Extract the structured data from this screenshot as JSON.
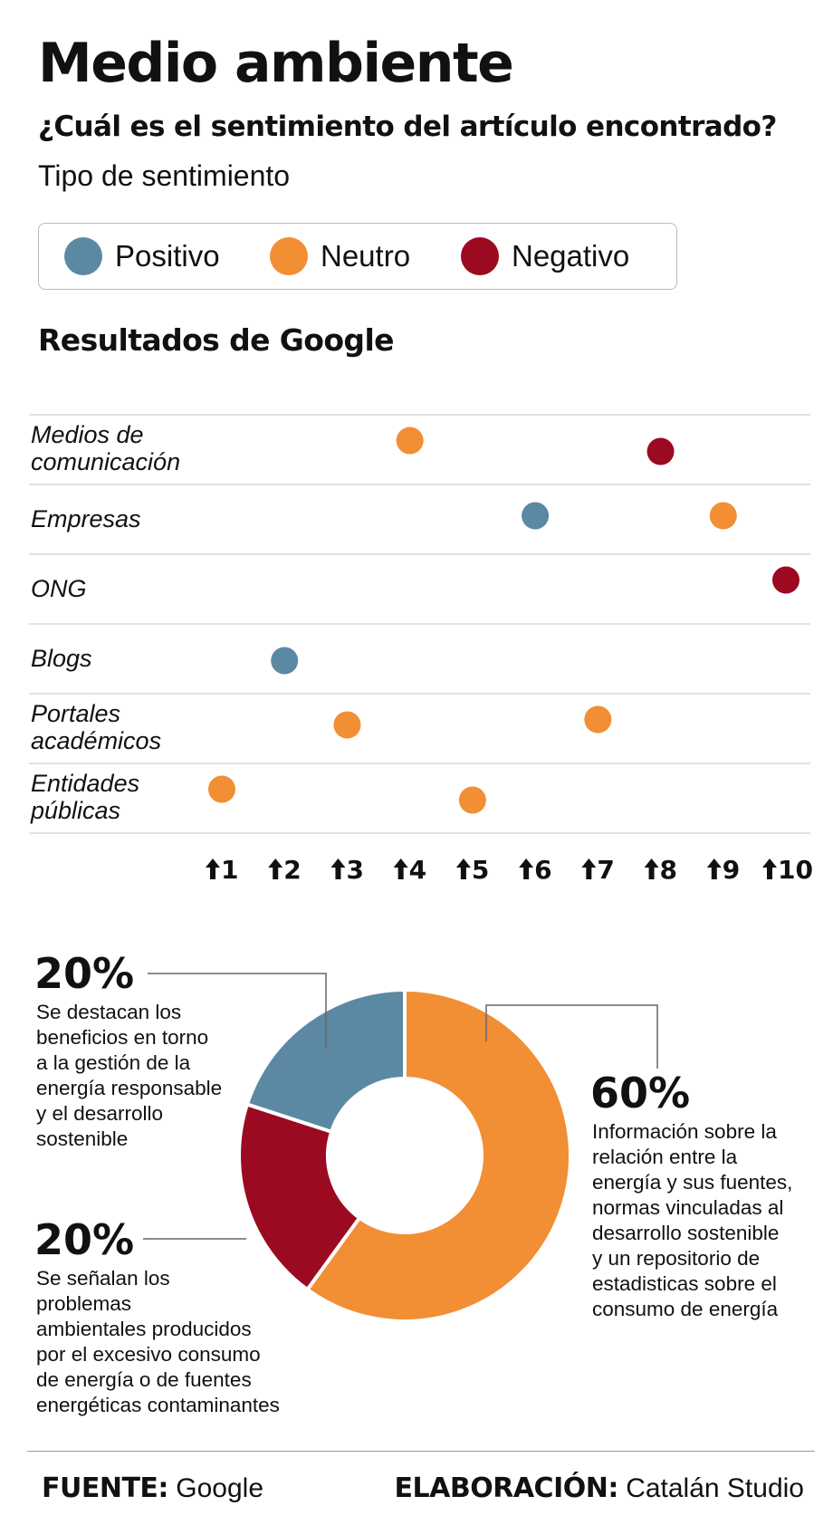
{
  "header": {
    "title": "Medio ambiente",
    "subtitle": "¿Cuál es el sentimiento del artículo encontrado?",
    "legend_title": "Tipo de sentimiento"
  },
  "colors": {
    "positivo": "#5b89a3",
    "neutro": "#f28e34",
    "negativo": "#9b0a21",
    "grid": "#d9d9d9",
    "text": "#111111"
  },
  "legend": [
    {
      "label": "Positivo",
      "color": "#5b89a3"
    },
    {
      "label": "Neutro",
      "color": "#f28e34"
    },
    {
      "label": "Negativo",
      "color": "#9b0a21"
    }
  ],
  "section_title": "Resultados de Google",
  "chart_data": [
    {
      "type": "scatter",
      "title": "Resultados de Google",
      "x_ticks": [
        "1",
        "2",
        "3",
        "4",
        "5",
        "6",
        "7",
        "8",
        "9",
        "10"
      ],
      "x_range": [
        1,
        10
      ],
      "categories": [
        "Medios de comunicación",
        "Empresas",
        "ONG",
        "Blogs",
        "Portales académicos",
        "Entidades públicas"
      ],
      "points": [
        {
          "category": 0,
          "rank": 4,
          "sentiment": "neutro"
        },
        {
          "category": 0,
          "rank": 8,
          "sentiment": "negativo"
        },
        {
          "category": 1,
          "rank": 6,
          "sentiment": "positivo"
        },
        {
          "category": 1,
          "rank": 9,
          "sentiment": "neutro"
        },
        {
          "category": 2,
          "rank": 10,
          "sentiment": "negativo"
        },
        {
          "category": 3,
          "rank": 2,
          "sentiment": "positivo"
        },
        {
          "category": 4,
          "rank": 3,
          "sentiment": "neutro"
        },
        {
          "category": 4,
          "rank": 7,
          "sentiment": "neutro"
        },
        {
          "category": 5,
          "rank": 1,
          "sentiment": "neutro"
        },
        {
          "category": 5,
          "rank": 5,
          "sentiment": "neutro"
        }
      ]
    },
    {
      "type": "pie",
      "slices": [
        {
          "label": "Neutro",
          "value": 60,
          "color": "#f28e34"
        },
        {
          "label": "Negativo",
          "value": 20,
          "color": "#9b0a21"
        },
        {
          "label": "Positivo",
          "value": 20,
          "color": "#5b89a3"
        }
      ]
    }
  ],
  "annotations": {
    "positivo": {
      "pct": "20%",
      "lines": [
        "Se destacan los",
        "beneficios en torno",
        "a la gestión de la",
        "energía responsable",
        "y el desarrollo",
        "sostenible"
      ]
    },
    "negativo": {
      "pct": "20%",
      "lines": [
        "Se señalan los",
        "problemas",
        "ambientales producidos",
        "por el excesivo consumo",
        "de energía o de fuentes",
        "energéticas contaminantes"
      ]
    },
    "neutro": {
      "pct": "60%",
      "lines": [
        "Información sobre la",
        "relación entre la",
        "energía y sus fuentes,",
        "normas vinculadas al",
        "desarrollo sostenible",
        "y un repositorio de",
        "estadisticas sobre el",
        "consumo de energía"
      ]
    }
  },
  "footer": {
    "source_key": "FUENTE:",
    "source_value": "Google",
    "credit_key": "ELABORACIÓN:",
    "credit_value": "Catalán Studio"
  }
}
